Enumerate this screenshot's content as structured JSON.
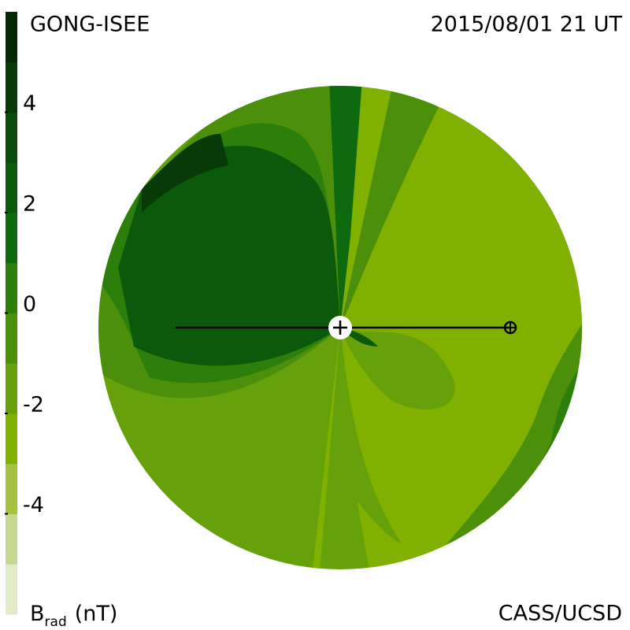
{
  "chart_data": {
    "type": "map",
    "title": "GONG-ISEE",
    "subtitle": "2015/08/01 21 UT",
    "credit": "CASS/UCSD",
    "colorbar": {
      "label": "B",
      "label_sub": "rad",
      "label_unit": "(nT)",
      "ylim": [
        -6,
        6
      ],
      "yticks": [
        -4,
        -2,
        0,
        2,
        4
      ],
      "colors": [
        "#e1ebc9",
        "#c5d992",
        "#a3c341",
        "#80b000",
        "#66a00a",
        "#4b8f0a",
        "#2b7f0a",
        "#0e6a0e",
        "#0b5a0b",
        "#0a4a0a",
        "#083a08",
        "#062806"
      ]
    }
  }
}
